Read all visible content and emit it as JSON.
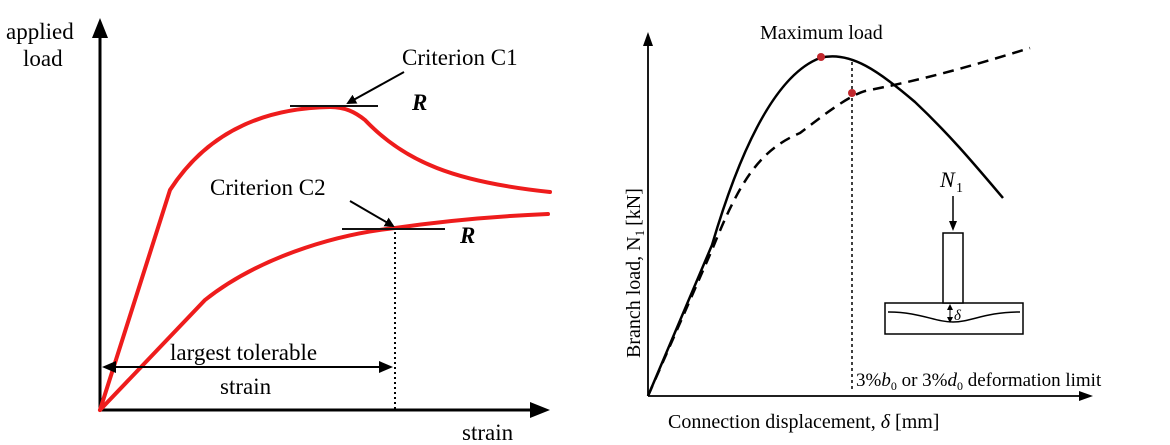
{
  "left_panel": {
    "y_axis_label_line1": "applied",
    "y_axis_label_line2": "load",
    "x_axis_label": "strain",
    "criterion_c1": "Criterion C1",
    "criterion_c2": "Criterion C2",
    "resistance_c1": "R",
    "resistance_c2": "R",
    "tolerable_label_line1": "largest tolerable",
    "tolerable_label_line2": "strain",
    "curve_color": "#ee1c1c"
  },
  "right_panel": {
    "top_label": "Maximum load",
    "y_axis_label": "Branch load, N",
    "y_axis_unit": "[kN]",
    "y_axis_subscript": "1",
    "x_axis_label": "Connection displacement, ",
    "x_axis_symbol": "δ",
    "x_axis_unit": "[mm]",
    "limit_label_a": "3%",
    "limit_label_b": "b",
    "limit_label_sub": "0",
    "limit_label_c": " or 3%",
    "limit_label_d": "d",
    "limit_label_e": " deformation limit",
    "inset_load": "N",
    "inset_load_sub": "1",
    "inset_delta": "δ",
    "marker_color": "#c1272d"
  }
}
